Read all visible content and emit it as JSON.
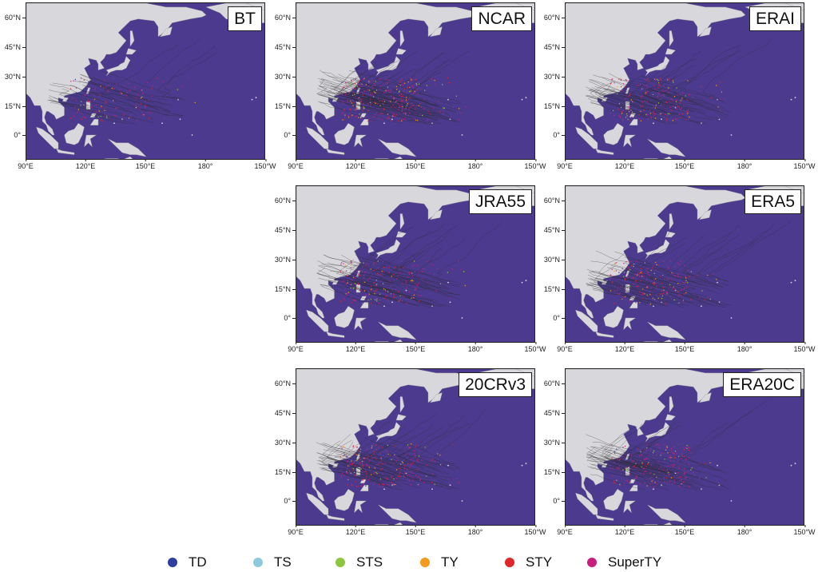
{
  "panels": [
    {
      "title": "BT"
    },
    {
      "title": "NCAR"
    },
    {
      "title": "ERAI"
    },
    {
      "title": "JRA55"
    },
    {
      "title": "ERA5"
    },
    {
      "title": "20CRv3"
    },
    {
      "title": "ERA20C"
    }
  ],
  "axes": {
    "lat_ticks": [
      "60°N",
      "45°N",
      "30°N",
      "15°N",
      "0°"
    ],
    "lon_ticks": [
      "90°E",
      "120°E",
      "150°E",
      "180°",
      "150°W"
    ],
    "lat_range": [
      -12,
      68
    ],
    "lon_range": [
      90,
      210
    ]
  },
  "legend": [
    {
      "label": "TD",
      "color": "#2e3f9e"
    },
    {
      "label": "TS",
      "color": "#8fc9dc"
    },
    {
      "label": "STS",
      "color": "#8dc63f"
    },
    {
      "label": "TY",
      "color": "#f39a1f"
    },
    {
      "label": "STY",
      "color": "#e0262b"
    },
    {
      "label": "SuperTY",
      "color": "#c81f7f"
    }
  ],
  "colors": {
    "ocean": "#4b3a8e",
    "land": "#d8d8dc",
    "track": "#2a2a2a"
  }
}
